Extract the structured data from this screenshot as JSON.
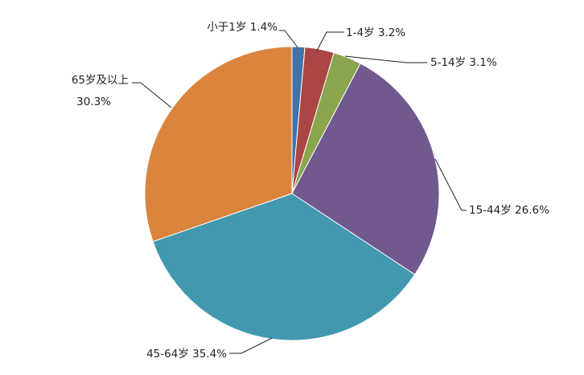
{
  "chart_data": {
    "type": "pie",
    "title": "",
    "start_angle": "12 o'clock, clockwise",
    "slices": [
      {
        "label": "小于1岁",
        "value": 1.4,
        "display": "1.4%",
        "color": "#4572A7"
      },
      {
        "label": "1-4岁",
        "value": 3.2,
        "display": "3.2%",
        "color": "#AA4643"
      },
      {
        "label": "5-14岁",
        "value": 3.1,
        "display": "3.1%",
        "color": "#89A54E"
      },
      {
        "label": "15-44岁",
        "value": 26.6,
        "display": "26.6%",
        "color": "#71588F"
      },
      {
        "label": "45-64岁",
        "value": 35.4,
        "display": "35.4%",
        "color": "#4198AF"
      },
      {
        "label": "65岁及以上",
        "value": 30.3,
        "display": "30.3%",
        "color": "#DB843D"
      }
    ],
    "legend": "none",
    "data_labels": "outside with leader lines"
  }
}
